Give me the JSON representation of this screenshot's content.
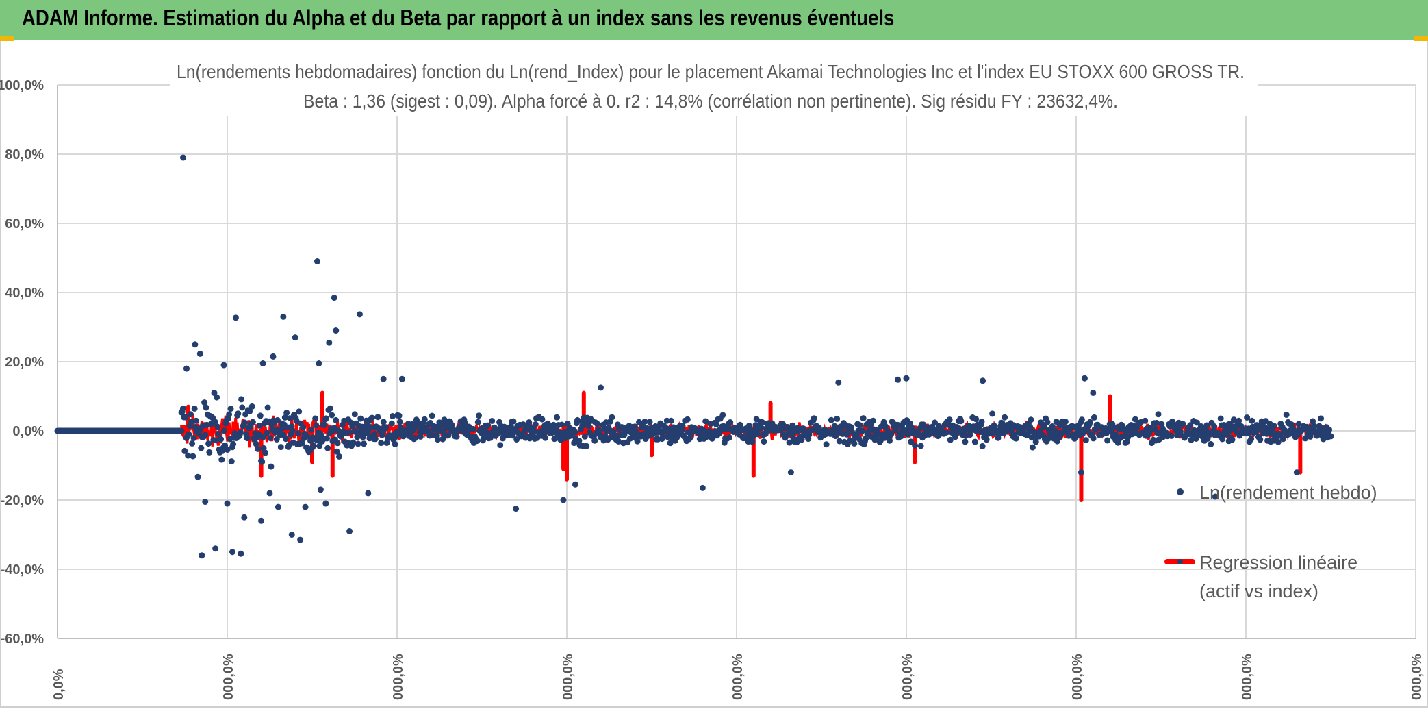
{
  "banner": {
    "title": "ADAM Informe. Estimation du Alpha et du Beta par rapport à un index sans les revenus éventuels",
    "color": "#7dc67e"
  },
  "chart_data": {
    "type": "scatter",
    "title_line1": "Ln(rendements hebdomadaires) fonction du Ln(rend_Index) pour le placement Akamai Technologies Inc et l'index EU STOXX 600 GROSS TR.",
    "title_line2": "Beta : 1,36 (sigest : 0,09). Alpha forcé à 0. r2 : 14,8% (corrélation non pertinente). Sig résidu FY : 23632,4%.",
    "ylim": [
      -0.6,
      1.0
    ],
    "y_ticks": [
      "100,0%",
      "80,0%",
      "60,0%",
      "40,0%",
      "20,0%",
      "0,0%",
      "-20,0%",
      "-40,0%",
      "-60,0%"
    ],
    "y_tick_values": [
      1.0,
      0.8,
      0.6,
      0.4,
      0.2,
      0.0,
      -0.2,
      -0.4,
      -0.6
    ],
    "x_ticks": [
      "0,0%",
      "000,0%",
      "000,0%",
      "000,0%",
      "000,0%",
      "000,0%",
      "000,0%",
      "000,0%",
      "000,0%"
    ],
    "x_tick_values": [
      0,
      1,
      2,
      3,
      4,
      5,
      6,
      7,
      8
    ],
    "xlim": [
      0,
      8
    ],
    "series": [
      {
        "name": "Ln(rendement hebdo)",
        "color": "#243f6f",
        "flat_segment": {
          "x_start": 0,
          "x_end": 0.73,
          "y": 0.0
        },
        "points_start": 0.73,
        "points_end": 7.5,
        "outliers": [
          [
            0.74,
            0.79
          ],
          [
            1.53,
            0.49
          ],
          [
            1.63,
            0.385
          ],
          [
            1.78,
            0.337
          ],
          [
            1.33,
            0.33
          ],
          [
            1.05,
            0.327
          ],
          [
            1.64,
            0.29
          ],
          [
            1.4,
            0.27
          ],
          [
            1.6,
            0.255
          ],
          [
            0.81,
            0.25
          ],
          [
            1.27,
            0.215
          ],
          [
            0.84,
            0.223
          ],
          [
            1.21,
            0.195
          ],
          [
            1.54,
            0.195
          ],
          [
            0.76,
            0.18
          ],
          [
            0.98,
            0.19
          ],
          [
            1.92,
            0.15
          ],
          [
            3.2,
            0.125
          ],
          [
            6.1,
            0.11
          ],
          [
            4.6,
            0.14
          ],
          [
            5.0,
            0.152
          ],
          [
            5.45,
            0.145
          ],
          [
            2.03,
            0.15
          ],
          [
            4.95,
            0.148
          ],
          [
            6.05,
            0.152
          ],
          [
            0.85,
            -0.36
          ],
          [
            0.93,
            -0.34
          ],
          [
            1.03,
            -0.35
          ],
          [
            1.08,
            -0.355
          ],
          [
            1.38,
            -0.3
          ],
          [
            1.43,
            -0.315
          ],
          [
            1.72,
            -0.29
          ],
          [
            0.87,
            -0.205
          ],
          [
            1.2,
            -0.26
          ],
          [
            1.3,
            -0.22
          ],
          [
            1.46,
            -0.22
          ],
          [
            1.58,
            -0.21
          ],
          [
            2.7,
            -0.225
          ],
          [
            2.98,
            -0.2
          ],
          [
            1.83,
            -0.18
          ],
          [
            3.05,
            -0.155
          ],
          [
            3.8,
            -0.165
          ],
          [
            4.32,
            -0.12
          ],
          [
            6.03,
            -0.12
          ],
          [
            6.82,
            -0.19
          ],
          [
            7.3,
            -0.12
          ],
          [
            1.1,
            -0.25
          ],
          [
            1.0,
            -0.21
          ],
          [
            1.55,
            -0.17
          ],
          [
            1.25,
            -0.18
          ]
        ]
      },
      {
        "name": "Regression linéaire\n(actif vs index)",
        "color": "#ff0000",
        "beta": 1.36,
        "spikes": [
          [
            6.03,
            -0.2
          ],
          [
            6.2,
            0.1
          ],
          [
            3.1,
            0.11
          ],
          [
            1.62,
            -0.13
          ],
          [
            1.2,
            -0.13
          ],
          [
            3.0,
            -0.14
          ],
          [
            4.1,
            -0.13
          ],
          [
            2.98,
            -0.11
          ],
          [
            1.5,
            -0.09
          ],
          [
            7.32,
            -0.12
          ],
          [
            5.05,
            -0.09
          ],
          [
            3.5,
            -0.07
          ],
          [
            0.77,
            0.07
          ],
          [
            1.56,
            0.11
          ],
          [
            4.2,
            0.08
          ]
        ]
      }
    ],
    "legend": {
      "placement": "right",
      "items": [
        {
          "label_lines": [
            "Ln(rendement hebdo)"
          ]
        },
        {
          "label_lines": [
            "Regression linéaire",
            "(actif vs index)"
          ]
        }
      ]
    }
  }
}
